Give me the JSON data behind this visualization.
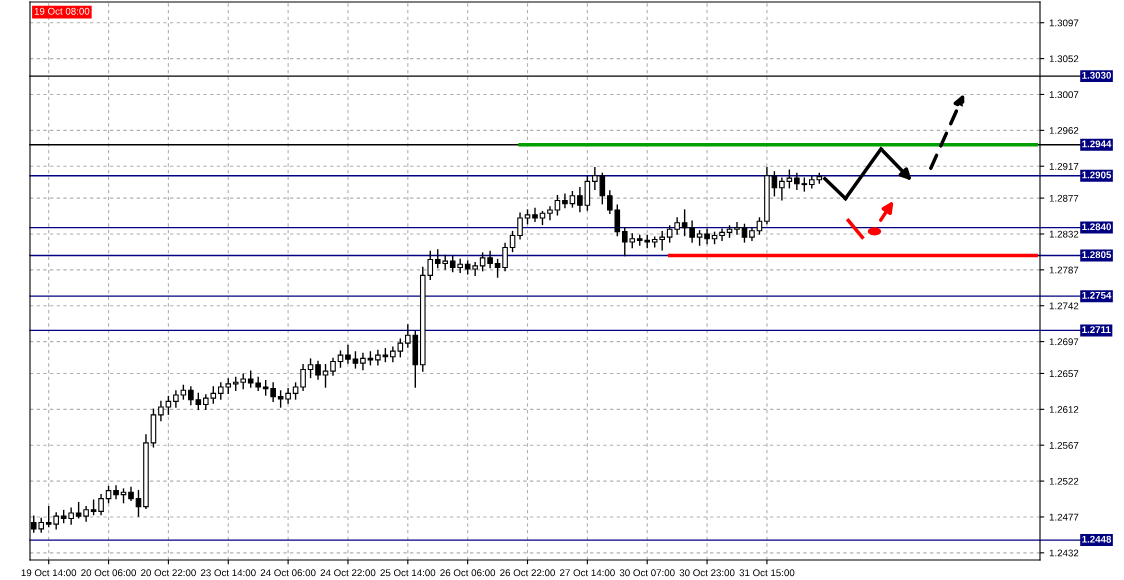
{
  "chart_data": {
    "type": "candlestick",
    "color": "#000000",
    "categories": [
      null,
      null,
      "19 Oct 14:00",
      null,
      null,
      null,
      null,
      null,
      null,
      null,
      "20 Oct 06:00",
      null,
      null,
      null,
      null,
      null,
      null,
      null,
      "20 Oct 22:00",
      null,
      null,
      null,
      null,
      null,
      null,
      null,
      "23 Oct 14:00",
      null,
      null,
      null,
      null,
      null,
      null,
      null,
      "24 Oct 06:00",
      null,
      null,
      null,
      null,
      null,
      null,
      null,
      "24 Oct 22:00",
      null,
      null,
      null,
      null,
      null,
      null,
      null,
      "25 Oct 14:00",
      null,
      null,
      null,
      null,
      null,
      null,
      null,
      "26 Oct 06:00",
      null,
      null,
      null,
      null,
      null,
      null,
      null,
      "26 Oct 22:00",
      null,
      null,
      null,
      null,
      null,
      null,
      null,
      "27 Oct 14:00",
      null,
      null,
      null,
      null,
      null,
      null,
      null,
      "30 Oct 07:00",
      null,
      null,
      null,
      null,
      null,
      null,
      null,
      "30 Oct 23:00",
      null,
      null,
      null,
      null,
      null,
      null,
      null,
      "31 Oct 15:00",
      null,
      null,
      null,
      null,
      null,
      null,
      null,
      null,
      null,
      null,
      null,
      null,
      null,
      null,
      null,
      null,
      null,
      null,
      null,
      null,
      null,
      null,
      null,
      null,
      null,
      null,
      null,
      null,
      null,
      null,
      null,
      null,
      null,
      null,
      null,
      null
    ],
    "ohlc": [
      [
        1.247,
        1.2478,
        1.2458,
        1.2462
      ],
      [
        1.2462,
        1.2475,
        1.2458,
        1.247
      ],
      [
        1.247,
        1.249,
        1.2465,
        1.2468
      ],
      [
        1.2468,
        1.2482,
        1.2462,
        1.2478
      ],
      [
        1.2478,
        1.2485,
        1.247,
        1.2475
      ],
      [
        1.2475,
        1.2488,
        1.2468,
        1.2482
      ],
      [
        1.2482,
        1.2495,
        1.2476,
        1.2478
      ],
      [
        1.2478,
        1.249,
        1.2472,
        1.2486
      ],
      [
        1.2486,
        1.2498,
        1.248,
        1.2484
      ],
      [
        1.2484,
        1.2505,
        1.248,
        1.25
      ],
      [
        1.25,
        1.2515,
        1.2495,
        1.251
      ],
      [
        1.251,
        1.2516,
        1.25,
        1.2505
      ],
      [
        1.2505,
        1.2512,
        1.2495,
        1.2508
      ],
      [
        1.2508,
        1.2514,
        1.2498,
        1.25
      ],
      [
        1.25,
        1.251,
        1.2478,
        1.249
      ],
      [
        1.249,
        1.258,
        1.2488,
        1.257
      ],
      [
        1.257,
        1.2612,
        1.2565,
        1.2605
      ],
      [
        1.2605,
        1.2622,
        1.2598,
        1.2615
      ],
      [
        1.2615,
        1.2628,
        1.2606,
        1.2622
      ],
      [
        1.2622,
        1.2635,
        1.2615,
        1.263
      ],
      [
        1.263,
        1.2642,
        1.2625,
        1.2636
      ],
      [
        1.2636,
        1.264,
        1.2618,
        1.2624
      ],
      [
        1.2624,
        1.2632,
        1.2612,
        1.2618
      ],
      [
        1.2618,
        1.263,
        1.2612,
        1.2626
      ],
      [
        1.2626,
        1.264,
        1.262,
        1.2632
      ],
      [
        1.2632,
        1.2645,
        1.2625,
        1.264
      ],
      [
        1.264,
        1.265,
        1.2632,
        1.2644
      ],
      [
        1.2644,
        1.2652,
        1.2636,
        1.2646
      ],
      [
        1.2646,
        1.2656,
        1.2638,
        1.265
      ],
      [
        1.265,
        1.266,
        1.264,
        1.2645
      ],
      [
        1.2645,
        1.2652,
        1.2636,
        1.264
      ],
      [
        1.264,
        1.2648,
        1.263,
        1.2638
      ],
      [
        1.2638,
        1.2645,
        1.2622,
        1.2628
      ],
      [
        1.2628,
        1.2635,
        1.2615,
        1.2625
      ],
      [
        1.2625,
        1.2638,
        1.262,
        1.2632
      ],
      [
        1.2632,
        1.2645,
        1.2625,
        1.264
      ],
      [
        1.264,
        1.2668,
        1.2636,
        1.2662
      ],
      [
        1.2662,
        1.2675,
        1.2652,
        1.2668
      ],
      [
        1.2668,
        1.2672,
        1.265,
        1.2655
      ],
      [
        1.2655,
        1.2668,
        1.264,
        1.266
      ],
      [
        1.266,
        1.2676,
        1.2655,
        1.2672
      ],
      [
        1.2672,
        1.2685,
        1.2665,
        1.268
      ],
      [
        1.268,
        1.2692,
        1.267,
        1.2675
      ],
      [
        1.2675,
        1.2684,
        1.2664,
        1.267
      ],
      [
        1.267,
        1.2682,
        1.2662,
        1.2676
      ],
      [
        1.2676,
        1.2684,
        1.2668,
        1.2674
      ],
      [
        1.2674,
        1.2686,
        1.2668,
        1.268
      ],
      [
        1.268,
        1.2688,
        1.2672,
        1.2678
      ],
      [
        1.2678,
        1.269,
        1.2672,
        1.2685
      ],
      [
        1.2685,
        1.27,
        1.2678,
        1.2695
      ],
      [
        1.2695,
        1.2718,
        1.269,
        1.2705
      ],
      [
        1.2705,
        1.271,
        1.264,
        1.2668
      ],
      [
        1.2668,
        1.279,
        1.266,
        1.278
      ],
      [
        1.278,
        1.281,
        1.2775,
        1.28
      ],
      [
        1.28,
        1.2812,
        1.279,
        1.2795
      ],
      [
        1.2795,
        1.2805,
        1.2788,
        1.2798
      ],
      [
        1.2798,
        1.2804,
        1.2785,
        1.279
      ],
      [
        1.279,
        1.28,
        1.2784,
        1.2794
      ],
      [
        1.2794,
        1.2798,
        1.2782,
        1.2788
      ],
      [
        1.2788,
        1.2796,
        1.278,
        1.2792
      ],
      [
        1.2792,
        1.2808,
        1.2786,
        1.2802
      ],
      [
        1.2802,
        1.281,
        1.279,
        1.2795
      ],
      [
        1.2795,
        1.28,
        1.2778,
        1.279
      ],
      [
        1.279,
        1.282,
        1.2786,
        1.2815
      ],
      [
        1.2815,
        1.2835,
        1.281,
        1.283
      ],
      [
        1.283,
        1.2858,
        1.2826,
        1.2852
      ],
      [
        1.2852,
        1.2862,
        1.2845,
        1.2856
      ],
      [
        1.2856,
        1.2864,
        1.2848,
        1.2852
      ],
      [
        1.2852,
        1.286,
        1.2844,
        1.2858
      ],
      [
        1.2858,
        1.2866,
        1.285,
        1.2862
      ],
      [
        1.2862,
        1.288,
        1.2856,
        1.2874
      ],
      [
        1.2874,
        1.2882,
        1.2865,
        1.287
      ],
      [
        1.287,
        1.2885,
        1.2866,
        1.288
      ],
      [
        1.288,
        1.289,
        1.286,
        1.2868
      ],
      [
        1.2868,
        1.2904,
        1.2862,
        1.2898
      ],
      [
        1.2898,
        1.2915,
        1.2888,
        1.2905
      ],
      [
        1.2905,
        1.2908,
        1.287,
        1.288
      ],
      [
        1.288,
        1.2886,
        1.2858,
        1.2862
      ],
      [
        1.2862,
        1.2868,
        1.283,
        1.2835
      ],
      [
        1.2835,
        1.284,
        1.2805,
        1.2822
      ],
      [
        1.2822,
        1.2832,
        1.2815,
        1.2826
      ],
      [
        1.2826,
        1.283,
        1.2818,
        1.2824
      ],
      [
        1.2824,
        1.283,
        1.2815,
        1.2822
      ],
      [
        1.2822,
        1.2828,
        1.2816,
        1.2825
      ],
      [
        1.2825,
        1.2835,
        1.2812,
        1.2828
      ],
      [
        1.2828,
        1.2842,
        1.2822,
        1.2838
      ],
      [
        1.2838,
        1.2852,
        1.2832,
        1.2846
      ],
      [
        1.2846,
        1.2862,
        1.283,
        1.284
      ],
      [
        1.284,
        1.2848,
        1.2822,
        1.2828
      ],
      [
        1.2828,
        1.2836,
        1.2818,
        1.2832
      ],
      [
        1.2832,
        1.2838,
        1.282,
        1.2826
      ],
      [
        1.2826,
        1.2834,
        1.282,
        1.283
      ],
      [
        1.283,
        1.2838,
        1.2824,
        1.2834
      ],
      [
        1.2834,
        1.2842,
        1.2828,
        1.2838
      ],
      [
        1.2838,
        1.2846,
        1.2832,
        1.284
      ],
      [
        1.284,
        1.2844,
        1.2822,
        1.2828
      ],
      [
        1.2828,
        1.284,
        1.2824,
        1.2836
      ],
      [
        1.2836,
        1.2852,
        1.2832,
        1.2848
      ],
      [
        1.2848,
        1.2915,
        1.2845,
        1.2905
      ],
      [
        1.2905,
        1.291,
        1.288,
        1.289
      ],
      [
        1.289,
        1.2902,
        1.2875,
        1.2898
      ],
      [
        1.2898,
        1.2912,
        1.289,
        1.2902
      ],
      [
        1.2902,
        1.2908,
        1.2888,
        1.2895
      ],
      [
        1.2895,
        1.2902,
        1.2886,
        1.2894
      ],
      [
        1.2894,
        1.2904,
        1.289,
        1.29
      ],
      [
        1.29,
        1.2908,
        1.2896,
        1.2904
      ],
      null,
      null,
      null,
      null,
      null,
      null,
      null,
      null,
      null,
      null,
      null,
      null,
      null,
      null,
      null,
      null,
      null,
      null,
      null,
      null,
      null,
      null,
      null,
      null,
      null,
      null,
      null,
      null,
      null
    ],
    "series": [
      {
        "type": "line",
        "color": "#00a000",
        "values": [
          null,
          null,
          null,
          null,
          null,
          null,
          null,
          null,
          null,
          null,
          null,
          null,
          null,
          null,
          null,
          null,
          null,
          null,
          null,
          null,
          null,
          null,
          null,
          null,
          null,
          null,
          null,
          null,
          null,
          null,
          null,
          null,
          null,
          null,
          null,
          null,
          null,
          null,
          null,
          null,
          null,
          null,
          null,
          null,
          null,
          null,
          null,
          null,
          null,
          null,
          null,
          null,
          null,
          null,
          null,
          null,
          null,
          null,
          null,
          null,
          null,
          null,
          null,
          null,
          null,
          1.2944,
          1.2944,
          1.2944,
          1.2944,
          1.2944,
          1.2944,
          1.2944,
          1.2944,
          1.2944,
          1.2944,
          1.2944,
          1.2944,
          1.2944,
          1.2944,
          1.2944,
          1.2944,
          1.2944,
          1.2944,
          1.2944,
          1.2944,
          1.2944,
          1.2944,
          1.2944,
          1.2944,
          1.2944,
          1.2944,
          1.2944,
          1.2944,
          1.2944,
          1.2944,
          1.2944,
          1.2944,
          1.2944,
          1.2944,
          1.2944,
          1.2944,
          1.2944,
          1.2944,
          1.2944,
          1.2944,
          1.2944,
          1.2944,
          1.2944,
          1.2944,
          1.2944,
          1.2944,
          1.2944,
          1.2944,
          1.2944,
          1.2944,
          1.2944,
          1.2944,
          1.2944,
          1.2944,
          1.2944,
          1.2944,
          1.2944,
          1.2944,
          1.2944,
          1.2944,
          1.2944,
          1.2944,
          1.2944,
          1.2944,
          1.2944,
          1.2944,
          1.2944,
          1.2944,
          1.2944,
          1.2944
        ]
      },
      {
        "type": "line",
        "color": "#ff0000",
        "values": [
          null,
          null,
          null,
          null,
          null,
          null,
          null,
          null,
          null,
          null,
          null,
          null,
          null,
          null,
          null,
          null,
          null,
          null,
          null,
          null,
          null,
          null,
          null,
          null,
          null,
          null,
          null,
          null,
          null,
          null,
          null,
          null,
          null,
          null,
          null,
          null,
          null,
          null,
          null,
          null,
          null,
          null,
          null,
          null,
          null,
          null,
          null,
          null,
          null,
          null,
          null,
          null,
          null,
          null,
          null,
          null,
          null,
          null,
          null,
          null,
          null,
          null,
          null,
          null,
          null,
          null,
          null,
          null,
          null,
          null,
          null,
          null,
          null,
          null,
          null,
          null,
          null,
          null,
          null,
          null,
          null,
          null,
          null,
          null,
          null,
          1.2805,
          1.2805,
          1.2805,
          1.2805,
          1.2805,
          1.2805,
          1.2805,
          1.2805,
          1.2805,
          1.2805,
          1.2805,
          1.2805,
          1.2805,
          1.2805,
          1.2805,
          1.2805,
          1.2805,
          1.2805,
          1.2805,
          1.2805,
          1.2805,
          1.2805,
          1.2805,
          1.2805,
          1.2805,
          1.2805,
          1.2805,
          1.2805,
          1.2805,
          1.2805,
          1.2805,
          1.2805,
          1.2805,
          1.2805,
          1.2805,
          1.2805,
          1.2805,
          1.2805,
          1.2805,
          1.2805,
          1.2805,
          1.2805,
          1.2805,
          1.2805,
          1.2805,
          1.2805,
          1.2805,
          1.2805,
          1.2805,
          1.2805
        ]
      }
    ],
    "ylim": [
      1.2423,
      1.3123
    ],
    "yticks": [
      1.2432,
      1.2477,
      1.2522,
      1.2567,
      1.2612,
      1.2657,
      1.2697,
      1.2742,
      1.2787,
      1.2832,
      1.2877,
      1.2917,
      1.2962,
      1.3007,
      1.3052,
      1.3097
    ],
    "ref_lines": [
      {
        "axis": "y",
        "value": 1.303,
        "label": "1.3030",
        "color": "#000000"
      },
      {
        "axis": "y",
        "value": 1.2944,
        "label": "1.2944",
        "color": "#000000"
      },
      {
        "axis": "y",
        "value": 1.2905,
        "label": "1.2905",
        "color": "#000080"
      },
      {
        "axis": "y",
        "value": 1.284,
        "label": "1.2840",
        "color": "#000080"
      },
      {
        "axis": "y",
        "value": 1.2805,
        "label": "1.2805",
        "color": "#000080"
      },
      {
        "axis": "y",
        "value": 1.2754,
        "label": "1.2754",
        "color": "#000080"
      },
      {
        "axis": "y",
        "value": 1.2711,
        "label": "1.2711",
        "color": "#000080"
      },
      {
        "axis": "y",
        "value": 1.2448,
        "label": "1.2448",
        "color": "#000080"
      }
    ],
    "annotations": [
      "19 Oct 08:00"
    ],
    "grid": true
  }
}
